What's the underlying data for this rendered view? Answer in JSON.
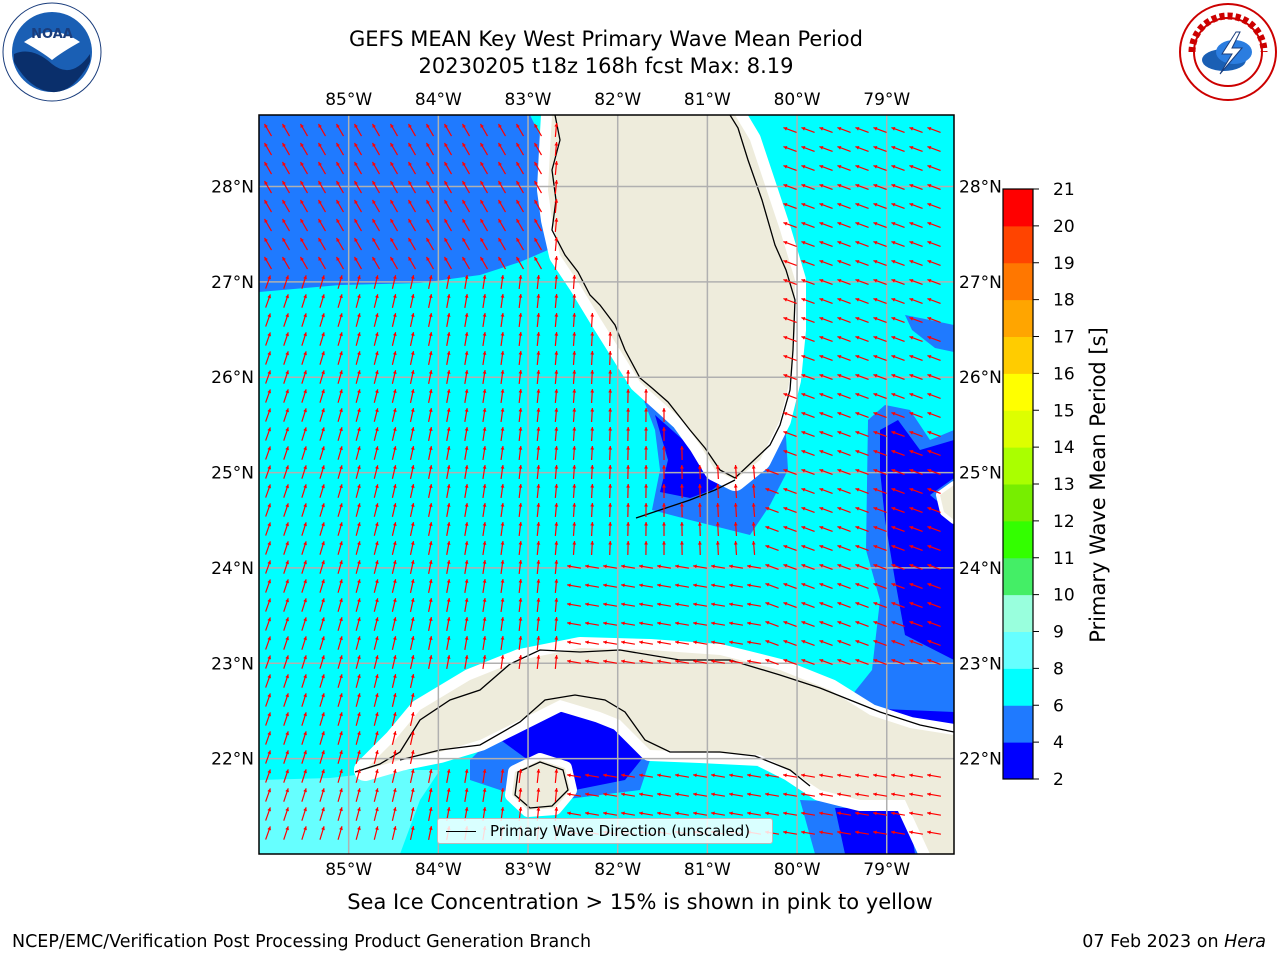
{
  "title": {
    "line1": "GEFS MEAN Key West Primary Wave Mean Period",
    "line2": "20230205 t18z 168h fcst   Max: 8.19"
  },
  "map": {
    "type": "filled-contour map with direction arrows",
    "region": "Florida Straits / Key West",
    "lon_ticks": [
      "85°W",
      "84°W",
      "83°W",
      "82°W",
      "81°W",
      "80°W",
      "79°W"
    ],
    "lat_ticks": [
      "28°N",
      "27°N",
      "26°N",
      "25°N",
      "24°N",
      "23°N",
      "22°N"
    ],
    "lon_range": [
      -86.0,
      -78.25
    ],
    "lat_range": [
      21.0,
      28.75
    ],
    "land_color": "#eeecdc",
    "coast_color": "#000000",
    "grid_color": "#b0b0b0",
    "arrow_color": "#ff0000",
    "contour_colors": {
      "2-4": "#0000ff",
      "4-6": "#1f7aff",
      "6-8": "#00ffff",
      "8-9": "#66ffff"
    }
  },
  "legend": {
    "label": "Primary Wave Direction (unscaled)"
  },
  "colorbar": {
    "title": "Primary Wave Mean Period [s]",
    "levels": [
      2,
      4,
      6,
      8,
      9,
      10,
      11,
      12,
      13,
      14,
      15,
      16,
      17,
      18,
      19,
      20,
      21
    ],
    "colors": [
      "#0000ff",
      "#1f7aff",
      "#00ffff",
      "#66ffff",
      "#99ffdd",
      "#44ee66",
      "#33ff00",
      "#77ee00",
      "#aaff00",
      "#ddff00",
      "#ffff00",
      "#ffcc00",
      "#ffa500",
      "#ff7700",
      "#ff4400",
      "#ff0000"
    ]
  },
  "note": "Sea Ice Concentration > 15% is shown in pink to yellow",
  "credit": "NCEP/EMC/Verification Post Processing Product Generation Branch",
  "stamp": {
    "date": "07 Feb 2023 on",
    "host": "Hera"
  },
  "logos": {
    "left": "noaa-logo",
    "right": "nws-logo"
  }
}
